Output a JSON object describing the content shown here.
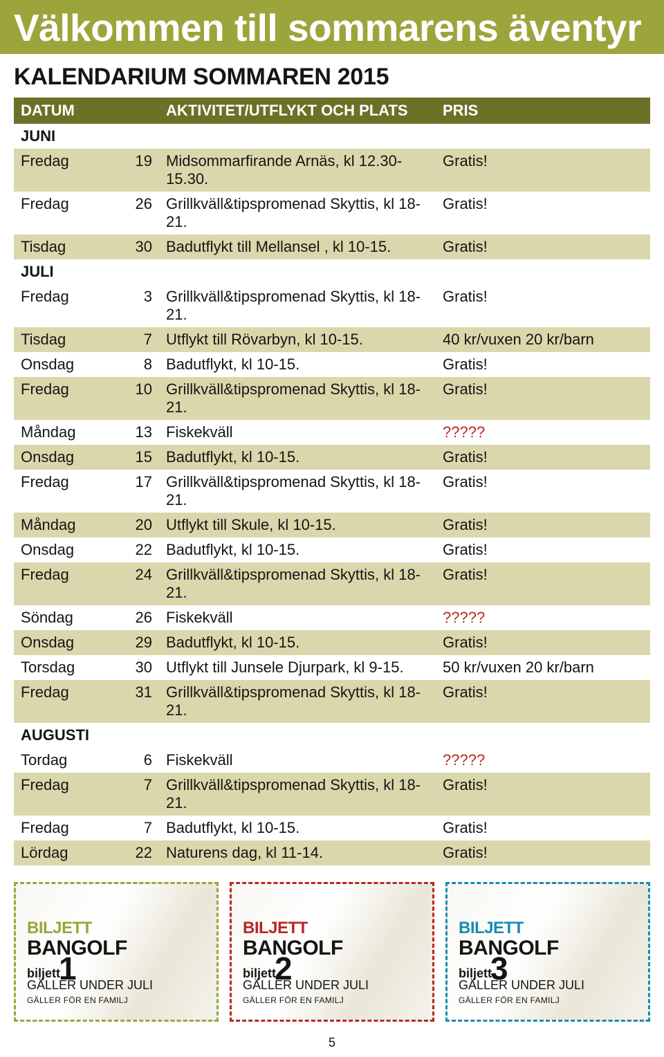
{
  "title": "Välkommen till sommarens äventyr",
  "subtitle": "KALENDARIUM SOMMAREN 2015",
  "page_number": "5",
  "colors": {
    "title_bg": "#9ca53b",
    "header_bg": "#6b7127",
    "row_odd_bg": "#dbd7ac",
    "row_even_bg": "#ffffff",
    "text": "#151512",
    "title_text": "#ffffff",
    "price_highlight": "#b72826",
    "ticket1_border": "#9ca53b",
    "ticket2_border": "#b72826",
    "ticket3_border": "#1a8bb5"
  },
  "header": {
    "date": "DATUM",
    "activity": "AKTIVITET/UTFLYKT OCH PLATS",
    "price": "PRIS"
  },
  "months": {
    "juni": "JUNI",
    "juli": "JULI",
    "augusti": "AUGUSTI"
  },
  "rows": [
    {
      "type": "month",
      "key": "juni"
    },
    {
      "type": "data",
      "shade": "odd",
      "day": "Fredag",
      "num": "19",
      "act": "Midsommarfirande Arnäs, kl 12.30-15.30.",
      "price": "Gratis!"
    },
    {
      "type": "data",
      "shade": "even",
      "day": "Fredag",
      "num": "26",
      "act": "Grillkväll&tipspromenad Skyttis, kl 18-21.",
      "price": "Gratis!"
    },
    {
      "type": "data",
      "shade": "odd",
      "day": "Tisdag",
      "num": "30",
      "act": "Badutflykt till Mellansel , kl 10-15.",
      "price": "Gratis!"
    },
    {
      "type": "month",
      "key": "juli"
    },
    {
      "type": "data",
      "shade": "even",
      "day": "Fredag",
      "num": "3",
      "act": "Grillkväll&tipspromenad Skyttis, kl 18-21.",
      "price": "Gratis!"
    },
    {
      "type": "data",
      "shade": "odd",
      "day": "Tisdag",
      "num": "7",
      "act": "Utflykt till Rövarbyn, kl 10-15.",
      "price": "40 kr/vuxen 20 kr/barn"
    },
    {
      "type": "data",
      "shade": "even",
      "day": "Onsdag",
      "num": "8",
      "act": "Badutflykt, kl 10-15.",
      "price": "Gratis!"
    },
    {
      "type": "data",
      "shade": "odd",
      "day": "Fredag",
      "num": "10",
      "act": "Grillkväll&tipspromenad Skyttis, kl 18-21.",
      "price": "Gratis!"
    },
    {
      "type": "data",
      "shade": "even",
      "day": "Måndag",
      "num": "13",
      "act": "Fiskekväll",
      "price": "?????",
      "price_red": true
    },
    {
      "type": "data",
      "shade": "odd",
      "day": "Onsdag",
      "num": "15",
      "act": "Badutflykt, kl 10-15.",
      "price": "Gratis!"
    },
    {
      "type": "data",
      "shade": "even",
      "day": "Fredag",
      "num": "17",
      "act": "Grillkväll&tipspromenad Skyttis, kl 18-21.",
      "price": "Gratis!"
    },
    {
      "type": "data",
      "shade": "odd",
      "day": "Måndag",
      "num": "20",
      "act": "Utflykt till Skule, kl 10-15.",
      "price": "Gratis!"
    },
    {
      "type": "data",
      "shade": "even",
      "day": "Onsdag",
      "num": "22",
      "act": "Badutflykt, kl 10-15.",
      "price": "Gratis!"
    },
    {
      "type": "data",
      "shade": "odd",
      "day": "Fredag",
      "num": "24",
      "act": "Grillkväll&tipspromenad Skyttis, kl 18-21.",
      "price": "Gratis!"
    },
    {
      "type": "data",
      "shade": "even",
      "day": "Söndag",
      "num": "26",
      "act": "Fiskekväll",
      "price": "?????",
      "price_red": true
    },
    {
      "type": "data",
      "shade": "odd",
      "day": "Onsdag",
      "num": "29",
      "act": "Badutflykt, kl 10-15.",
      "price": "Gratis!"
    },
    {
      "type": "data",
      "shade": "even",
      "day": "Torsdag",
      "num": "30",
      "act": "Utflykt till Junsele Djurpark, kl 9-15.",
      "price": "50 kr/vuxen 20 kr/barn"
    },
    {
      "type": "data",
      "shade": "odd",
      "day": "Fredag",
      "num": "31",
      "act": "Grillkväll&tipspromenad Skyttis, kl 18-21.",
      "price": "Gratis!"
    },
    {
      "type": "month",
      "key": "augusti"
    },
    {
      "type": "data",
      "shade": "even",
      "day": "Tordag",
      "num": "6",
      "act": "Fiskekväll",
      "price": "?????",
      "price_red": true
    },
    {
      "type": "data",
      "shade": "odd",
      "day": "Fredag",
      "num": "7",
      "act": "Grillkväll&tipspromenad Skyttis, kl 18-21.",
      "price": "Gratis!"
    },
    {
      "type": "data",
      "shade": "even",
      "day": "Fredag",
      "num": "7",
      "act": "Badutflykt, kl  10-15.",
      "price": "Gratis!"
    },
    {
      "type": "data",
      "shade": "odd",
      "day": "Lördag",
      "num": "22",
      "act": "Naturens dag, kl  11-14.",
      "price": "Gratis!"
    }
  ],
  "tickets": {
    "biljett_label": "BILJETT",
    "bangolf_label": "BANGOLF",
    "biljett_small": "biljett",
    "valid_text": "GÄLLER UNDER JULI",
    "family_text": "GÄLLER FÖR EN FAMILJ",
    "items": [
      {
        "num": "1",
        "color": "#9ca53b"
      },
      {
        "num": "2",
        "color": "#b72826"
      },
      {
        "num": "3",
        "color": "#1a8bb5"
      }
    ]
  }
}
